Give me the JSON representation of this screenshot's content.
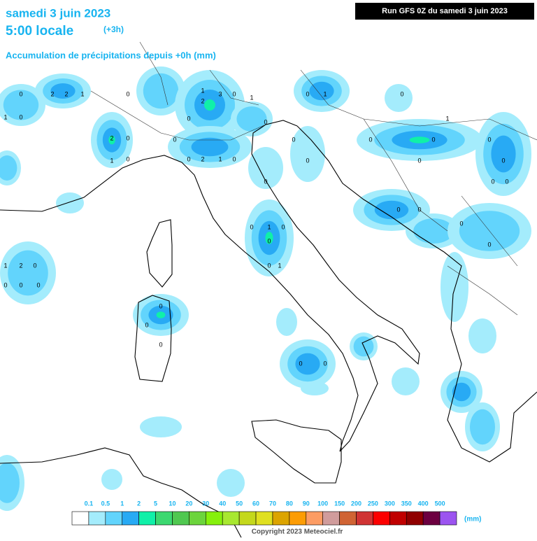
{
  "header": {
    "date": "samedi 3 juin 2023",
    "time": "5:00 locale",
    "offset": "(+3h)",
    "subtitle": "Accumulation de précipitations depuis +0h (mm)",
    "run": "Run GFS 0Z du samedi 3 juin 2023"
  },
  "map_labels": [
    "0",
    "2",
    "2",
    "1",
    "0",
    "1",
    "0",
    "0",
    "2",
    "0",
    "1",
    "3",
    "0",
    "2",
    "0",
    "1",
    "2",
    "1",
    "0",
    "0",
    "0",
    "1",
    "0",
    "1",
    "0",
    "0",
    "0",
    "0",
    "1",
    "0",
    "0",
    "0",
    "0",
    "1",
    "0",
    "0",
    "1",
    "0",
    "0",
    "0",
    "0",
    "0",
    "0",
    "0",
    "0",
    "0",
    "0",
    "1",
    "2",
    "0",
    "0",
    "0",
    "0",
    "0",
    "0",
    "0",
    "0",
    "0"
  ],
  "legend": {
    "thresholds": [
      0.1,
      0.5,
      1,
      2,
      5,
      10,
      20,
      30,
      40,
      50,
      60,
      70,
      80,
      90,
      100,
      150,
      200,
      250,
      300,
      350,
      400,
      500
    ],
    "colors": [
      "#ffffff",
      "#a4ecfc",
      "#62d4fc",
      "#28aaf4",
      "#10f0a8",
      "#3cd870",
      "#50c850",
      "#6cd43c",
      "#86f00c",
      "#a8e830",
      "#c4d81c",
      "#e0e020",
      "#dca400",
      "#fc9c04",
      "#fc9c64",
      "#d09c9c",
      "#d06434",
      "#d03434",
      "#fc0000",
      "#c00000",
      "#900000",
      "#6c0040",
      "#9c54f0"
    ],
    "unit": "(mm)"
  },
  "footer": {
    "copyright": "Copyright 2023 Meteociel.fr"
  }
}
